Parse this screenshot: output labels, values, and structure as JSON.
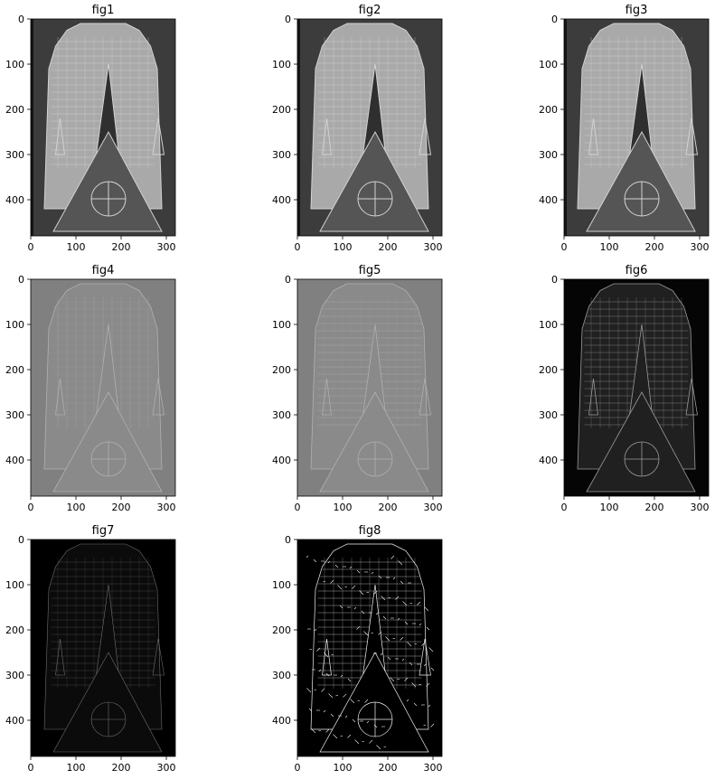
{
  "chart_data": [
    {
      "type": "image",
      "title": "fig1",
      "xticks": [
        "0",
        "100",
        "200",
        "300"
      ],
      "yticks": [
        "0",
        "100",
        "200",
        "300",
        "400"
      ],
      "xlim": [
        0,
        320
      ],
      "ylim": [
        480,
        0
      ],
      "image_style": "grayscale",
      "notes": "original"
    },
    {
      "type": "image",
      "title": "fig2",
      "xticks": [
        "0",
        "100",
        "200",
        "300"
      ],
      "yticks": [
        "0",
        "100",
        "200",
        "300",
        "400"
      ],
      "xlim": [
        0,
        320
      ],
      "ylim": [
        480,
        0
      ],
      "image_style": "grayscale",
      "notes": "shifted"
    },
    {
      "type": "image",
      "title": "fig3",
      "xticks": [
        "0",
        "100",
        "200",
        "300"
      ],
      "yticks": [
        "0",
        "100",
        "200",
        "300",
        "400"
      ],
      "xlim": [
        0,
        320
      ],
      "ylim": [
        480,
        0
      ],
      "image_style": "grayscale",
      "notes": "shifted-down"
    },
    {
      "type": "image",
      "title": "fig4",
      "xticks": [
        "0",
        "100",
        "200",
        "300"
      ],
      "yticks": [
        "0",
        "100",
        "200",
        "300",
        "400"
      ],
      "xlim": [
        0,
        320
      ],
      "ylim": [
        480,
        0
      ],
      "image_style": "gradient-x",
      "notes": ""
    },
    {
      "type": "image",
      "title": "fig5",
      "xticks": [
        "0",
        "100",
        "200",
        "300"
      ],
      "yticks": [
        "0",
        "100",
        "200",
        "300",
        "400"
      ],
      "xlim": [
        0,
        320
      ],
      "ylim": [
        480,
        0
      ],
      "image_style": "gradient-y",
      "notes": ""
    },
    {
      "type": "image",
      "title": "fig6",
      "xticks": [
        "0",
        "100",
        "200",
        "300"
      ],
      "yticks": [
        "0",
        "100",
        "200",
        "300",
        "400"
      ],
      "xlim": [
        0,
        320
      ],
      "ylim": [
        480,
        0
      ],
      "image_style": "magnitude",
      "notes": ""
    },
    {
      "type": "image",
      "title": "fig7",
      "xticks": [
        "0",
        "100",
        "200",
        "300"
      ],
      "yticks": [
        "0",
        "100",
        "200",
        "300",
        "400"
      ],
      "xlim": [
        0,
        320
      ],
      "ylim": [
        480,
        0
      ],
      "image_style": "magnitude-dark",
      "notes": ""
    },
    {
      "type": "image",
      "title": "fig8",
      "xticks": [
        "0",
        "100",
        "200",
        "300"
      ],
      "yticks": [
        "0",
        "100",
        "200",
        "300",
        "400"
      ],
      "xlim": [
        0,
        320
      ],
      "ylim": [
        480,
        0
      ],
      "image_style": "edges",
      "notes": ""
    }
  ],
  "colors": {
    "background": "#ffffff",
    "axis": "#000000",
    "text": "#000000"
  }
}
